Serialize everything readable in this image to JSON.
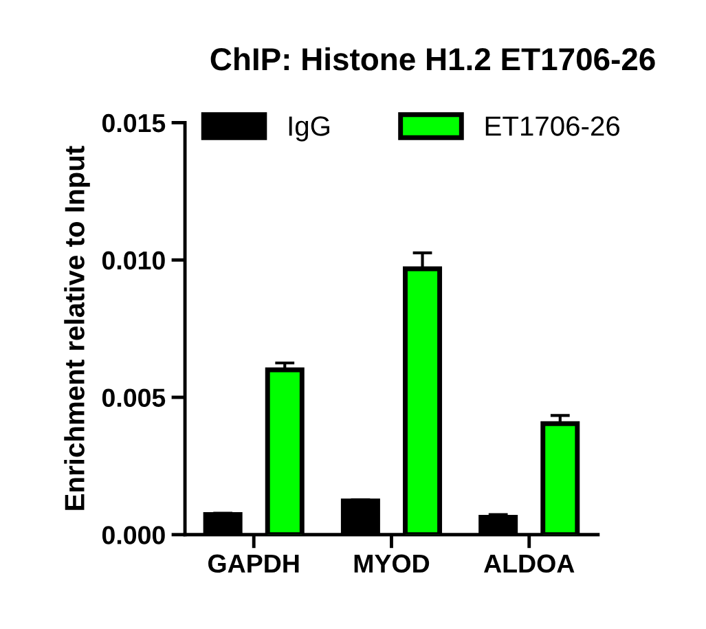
{
  "chart_data": {
    "type": "bar",
    "title": "ChIP: Histone H1.2 ET1706-26",
    "ylabel": "Enrichment relative to Input",
    "categories": [
      "GAPDH",
      "MYOD",
      "ALDOA"
    ],
    "series": [
      {
        "name": "IgG",
        "color": "#000000",
        "values": [
          0.00073,
          0.00123,
          0.00063
        ],
        "errors": [
          [
            0.00073,
            0.00078
          ],
          [
            0.00123,
            0.00127
          ],
          [
            0.00063,
            0.00073
          ]
        ]
      },
      {
        "name": "ET1706-26",
        "color": "#00ff00",
        "values": [
          0.006,
          0.00968,
          0.00404
        ],
        "errors": [
          [
            0.006,
            0.00625
          ],
          [
            0.00968,
            0.01026
          ],
          [
            0.00404,
            0.00434
          ]
        ]
      }
    ],
    "ylim": [
      0,
      0.015
    ],
    "yticks": [
      {
        "value": 0,
        "label": "0.000"
      },
      {
        "value": 0.005,
        "label": "0.005"
      },
      {
        "value": 0.01,
        "label": "0.010"
      },
      {
        "value": 0.015,
        "label": "0.015"
      }
    ],
    "grid": false,
    "legend": "top"
  }
}
